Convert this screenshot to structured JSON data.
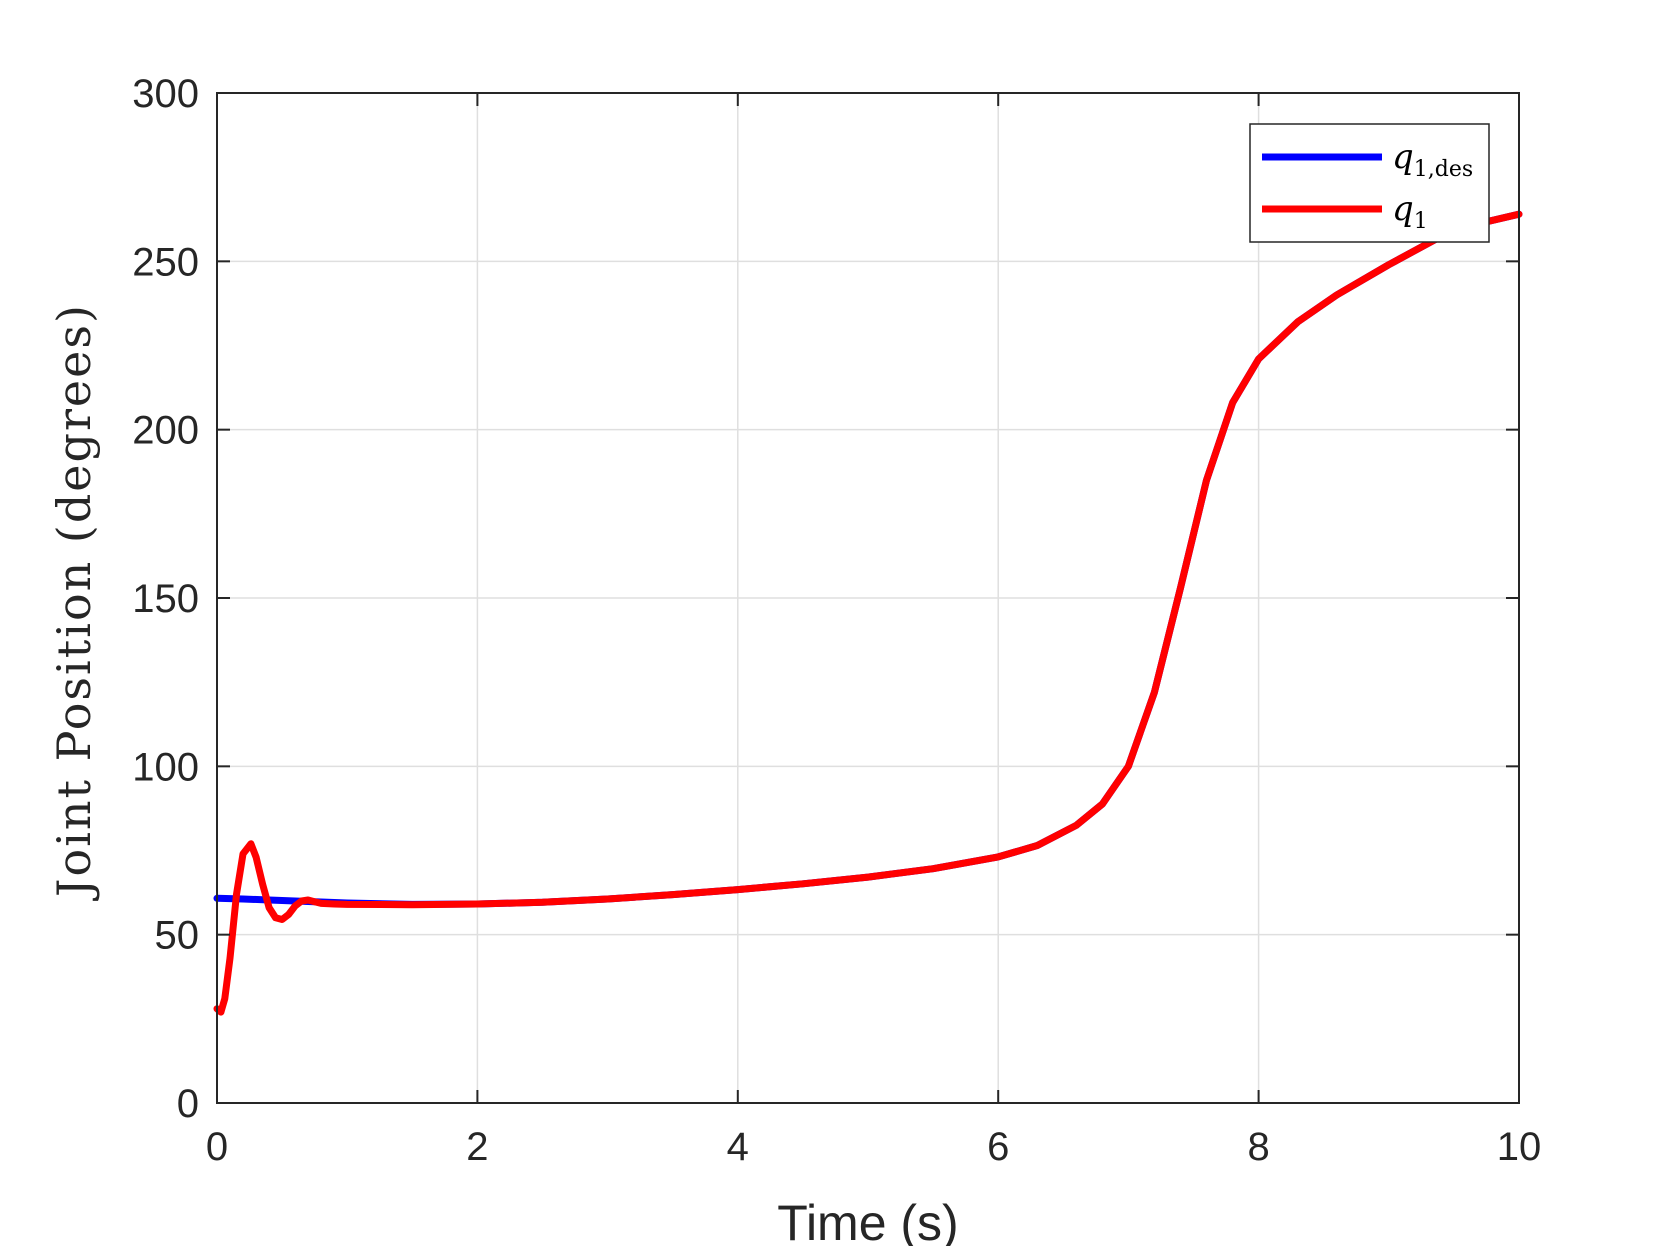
{
  "chart_data": {
    "type": "line",
    "xlabel": "Time (s)",
    "ylabel": "Joint Position (degrees)",
    "xlim": [
      0,
      10
    ],
    "ylim": [
      0,
      300
    ],
    "xticks": [
      0,
      2,
      4,
      6,
      8,
      10
    ],
    "yticks": [
      0,
      50,
      100,
      150,
      200,
      250,
      300
    ],
    "grid": true,
    "legend_position": "top-right",
    "series": [
      {
        "name": "q_{1,des}",
        "legend_main": "q",
        "legend_sub": "1,des",
        "color": "#0000ff",
        "x": [
          0,
          0.2,
          0.4,
          0.6,
          0.8,
          1.0,
          1.5,
          2.0,
          2.5,
          3.0,
          3.5,
          4.0,
          4.5,
          5.0,
          5.5,
          6.0,
          6.3,
          6.6,
          6.8,
          7.0,
          7.2,
          7.4,
          7.6,
          7.8,
          8.0,
          8.3,
          8.6,
          9.0,
          9.5,
          10.0
        ],
        "y": [
          60.8,
          60.6,
          60.3,
          60.0,
          59.7,
          59.4,
          59.0,
          59.1,
          59.6,
          60.6,
          61.9,
          63.4,
          65.1,
          67.1,
          69.6,
          73.1,
          76.5,
          82.5,
          88.8,
          100.0,
          122.0,
          153.0,
          185.0,
          208.0,
          221.0,
          232.0,
          240.0,
          249.0,
          259.5,
          264.0
        ]
      },
      {
        "name": "q_1",
        "legend_main": "q",
        "legend_sub": "1",
        "color": "#ff0000",
        "x": [
          0,
          0.03,
          0.06,
          0.1,
          0.15,
          0.2,
          0.26,
          0.3,
          0.35,
          0.4,
          0.45,
          0.5,
          0.55,
          0.6,
          0.65,
          0.7,
          0.75,
          0.8,
          0.9,
          1.0,
          1.5,
          2.0,
          2.5,
          3.0,
          3.5,
          4.0,
          4.5,
          5.0,
          5.5,
          6.0,
          6.3,
          6.6,
          6.8,
          7.0,
          7.2,
          7.4,
          7.6,
          7.8,
          8.0,
          8.3,
          8.6,
          9.0,
          9.5,
          10.0
        ],
        "y": [
          28,
          27,
          31,
          43,
          62,
          74,
          77,
          73,
          65,
          58,
          55,
          54.5,
          56,
          58.5,
          60,
          60.3,
          59.8,
          59.3,
          59.1,
          59.0,
          58.9,
          59.1,
          59.6,
          60.6,
          61.9,
          63.4,
          65.1,
          67.1,
          69.6,
          73.1,
          76.5,
          82.5,
          88.8,
          100.0,
          122.0,
          153.0,
          185.0,
          208.0,
          221.0,
          232.0,
          240.0,
          249.0,
          259.5,
          264.0
        ]
      }
    ]
  }
}
